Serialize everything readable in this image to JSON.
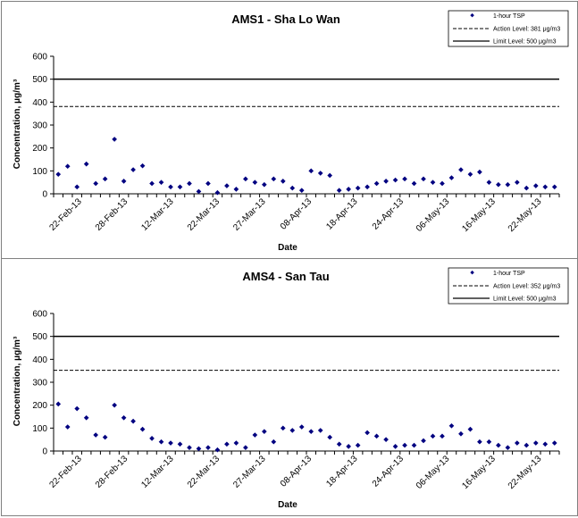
{
  "chart_data": [
    {
      "type": "scatter",
      "title": "AMS1 - Sha Lo Wan",
      "xlabel": "Date",
      "ylabel": "Concentration, μg/m³",
      "ylim": [
        0,
        600
      ],
      "yticks": [
        "0",
        "100",
        "200",
        "300",
        "400",
        "500",
        "600"
      ],
      "xticks": [
        "22-Feb-13",
        "28-Feb-13",
        "12-Mar-13",
        "22-Mar-13",
        "27-Mar-13",
        "08-Apr-13",
        "18-Apr-13",
        "24-Apr-13",
        "06-May-13",
        "16-May-13",
        "22-May-13"
      ],
      "grid": false,
      "legend_position": "top-right",
      "legend": [
        "1-hour TSP",
        "Action Level: 381 μg/m3",
        "Limit Level: 500 μg/m3"
      ],
      "action_level": 381,
      "limit_level": 500,
      "series": [
        {
          "name": "1-hour TSP",
          "values": [
            85,
            120,
            30,
            130,
            45,
            65,
            238,
            55,
            105,
            122,
            45,
            50,
            30,
            30,
            45,
            10,
            45,
            5,
            35,
            20,
            65,
            50,
            40,
            65,
            55,
            25,
            15,
            100,
            90,
            80,
            15,
            20,
            25,
            30,
            45,
            55,
            60,
            65,
            45,
            65,
            50,
            45,
            70,
            105,
            85,
            95,
            50,
            40,
            40,
            50,
            25,
            35,
            30,
            30
          ]
        }
      ]
    },
    {
      "type": "scatter",
      "title": "AMS4 - San Tau",
      "xlabel": "Date",
      "ylabel": "Concentration, μg/m³",
      "ylim": [
        0,
        600
      ],
      "yticks": [
        "0",
        "100",
        "200",
        "300",
        "400",
        "500",
        "600"
      ],
      "xticks": [
        "22-Feb-13",
        "28-Feb-13",
        "12-Mar-13",
        "22-Mar-13",
        "27-Mar-13",
        "08-Apr-13",
        "18-Apr-13",
        "24-Apr-13",
        "06-May-13",
        "16-May-13",
        "22-May-13"
      ],
      "grid": false,
      "legend_position": "top-right",
      "legend": [
        "1-hour TSP",
        "Action Level: 352 μg/m3",
        "Limit Level: 500 μg/m3"
      ],
      "action_level": 352,
      "limit_level": 500,
      "series": [
        {
          "name": "1-hour TSP",
          "values": [
            205,
            105,
            185,
            145,
            70,
            60,
            200,
            145,
            130,
            95,
            55,
            40,
            35,
            30,
            15,
            10,
            15,
            5,
            30,
            35,
            15,
            70,
            85,
            40,
            100,
            90,
            105,
            85,
            90,
            60,
            30,
            20,
            25,
            80,
            65,
            50,
            20,
            25,
            25,
            45,
            65,
            65,
            110,
            75,
            95,
            40,
            40,
            25,
            15,
            35,
            25,
            35,
            30,
            35
          ]
        }
      ]
    }
  ]
}
